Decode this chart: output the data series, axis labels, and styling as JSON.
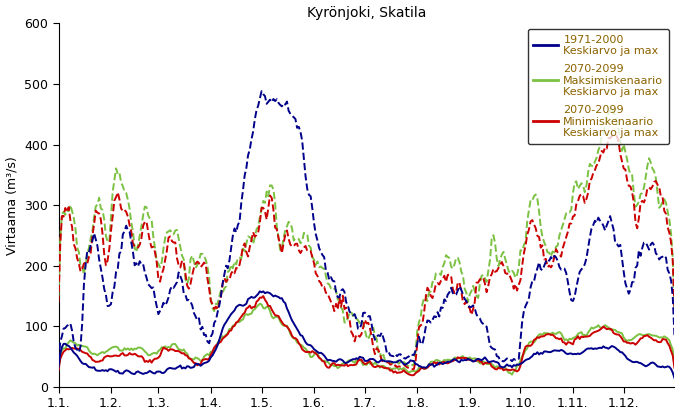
{
  "title": "Kyrönjoki, Skatila",
  "ylabel": "Virtaama (m³/s)",
  "ylim": [
    0,
    600
  ],
  "yticks": [
    0,
    100,
    200,
    300,
    400,
    500,
    600
  ],
  "xtick_labels": [
    "1.1.",
    "1.2.",
    "1.3.",
    "1.4.",
    "1.5.",
    "1.6.",
    "1.7.",
    "1.8.",
    "1.9.",
    "1.10.",
    "1.11.",
    "1.12."
  ],
  "month_starts": [
    0,
    31,
    59,
    90,
    120,
    151,
    181,
    212,
    243,
    273,
    304,
    334
  ],
  "colors": {
    "blue": "#00008B",
    "green": "#7bc142",
    "red": "#cc0000"
  },
  "legend_label_color": "#8B6400",
  "legend_entries": [
    {
      "line1": "1971-2000",
      "line2": "Keskiarvo ja max"
    },
    {
      "line1": "2070-2099",
      "line2": "Maksimiskenaario",
      "line3": "Keskiarvo ja max"
    },
    {
      "line1": "2070-2099",
      "line2": "Minimiskenaario",
      "line3": "Keskiarvo ja max"
    }
  ],
  "title_fontsize": 10,
  "axis_fontsize": 9,
  "tick_fontsize": 9,
  "legend_fontsize": 8
}
